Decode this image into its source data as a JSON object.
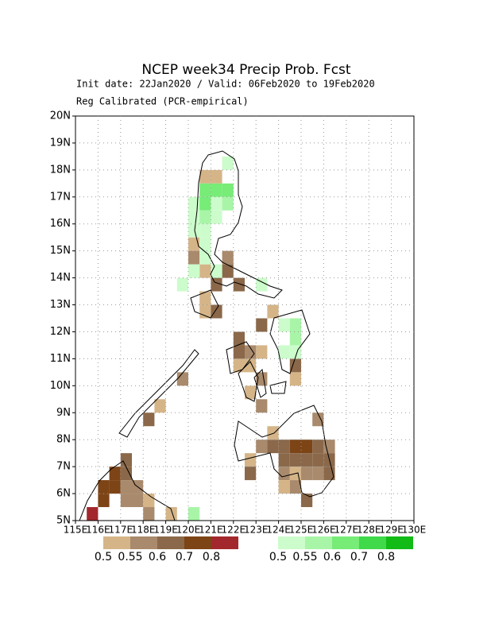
{
  "chart_data": {
    "type": "grid-map",
    "title": "NCEP week34 Precip Prob. Fcst",
    "subtitle": "Init date: 22Jan2020 / Valid: 06Feb2020 to 19Feb2020",
    "method": "Reg Calibrated (PCR-empirical)",
    "xlim": [
      115,
      130
    ],
    "ylim": [
      5,
      20
    ],
    "xticks": [
      {
        "value": 115,
        "label": "115E"
      },
      {
        "value": 116,
        "label": "116E"
      },
      {
        "value": 117,
        "label": "117E"
      },
      {
        "value": 118,
        "label": "118E"
      },
      {
        "value": 119,
        "label": "119E"
      },
      {
        "value": 120,
        "label": "120E"
      },
      {
        "value": 121,
        "label": "121E"
      },
      {
        "value": 122,
        "label": "122E"
      },
      {
        "value": 123,
        "label": "123E"
      },
      {
        "value": 124,
        "label": "124E"
      },
      {
        "value": 125,
        "label": "125E"
      },
      {
        "value": 126,
        "label": "126E"
      },
      {
        "value": 127,
        "label": "127E"
      },
      {
        "value": 128,
        "label": "128E"
      },
      {
        "value": 129,
        "label": "129E"
      },
      {
        "value": 130,
        "label": "130E"
      }
    ],
    "yticks": [
      {
        "value": 5,
        "label": "5N"
      },
      {
        "value": 6,
        "label": "6N"
      },
      {
        "value": 7,
        "label": "7N"
      },
      {
        "value": 8,
        "label": "8N"
      },
      {
        "value": 9,
        "label": "9N"
      },
      {
        "value": 10,
        "label": "10N"
      },
      {
        "value": 11,
        "label": "11N"
      },
      {
        "value": 12,
        "label": "12N"
      },
      {
        "value": 13,
        "label": "13N"
      },
      {
        "value": 14,
        "label": "14N"
      },
      {
        "value": 15,
        "label": "15N"
      },
      {
        "value": 16,
        "label": "16N"
      },
      {
        "value": 17,
        "label": "17N"
      },
      {
        "value": 18,
        "label": "18N"
      },
      {
        "value": 19,
        "label": "19N"
      },
      {
        "value": 20,
        "label": "20N"
      }
    ],
    "grid": true,
    "levels": [
      0.5,
      0.55,
      0.6,
      0.7,
      0.8
    ],
    "dry_colors": [
      "#d5b588",
      "#a98a6c",
      "#8a6849",
      "#7d4416",
      "#a3282d"
    ],
    "wet_colors": [
      "#ccfccc",
      "#a8f5a8",
      "#77ec77",
      "#3fd94a",
      "#12bb16"
    ],
    "dry_cells": [
      [
        120.5,
        17.5,
        0.5
      ],
      [
        121,
        17.5,
        0.5
      ],
      [
        120,
        15,
        0.5
      ],
      [
        120,
        14.5,
        0.55
      ],
      [
        120.5,
        14,
        0.5
      ],
      [
        120.5,
        13,
        0.5
      ],
      [
        121.5,
        14,
        0.6
      ],
      [
        121.5,
        14.5,
        0.55
      ],
      [
        121,
        13.5,
        0.6
      ],
      [
        122,
        13.5,
        0.6
      ],
      [
        120.5,
        12.5,
        0.5
      ],
      [
        121,
        12.5,
        0.6
      ],
      [
        122,
        11.5,
        0.6
      ],
      [
        122,
        11,
        0.6
      ],
      [
        122.5,
        11,
        0.55
      ],
      [
        122,
        10.5,
        0.5
      ],
      [
        122.5,
        10.5,
        0.5
      ],
      [
        123,
        11,
        0.5
      ],
      [
        123,
        12,
        0.6
      ],
      [
        123.5,
        12.5,
        0.5
      ],
      [
        124.5,
        10.5,
        0.6
      ],
      [
        124.5,
        10,
        0.5
      ],
      [
        123,
        10,
        0.55
      ],
      [
        122.5,
        9.5,
        0.5
      ],
      [
        123,
        9,
        0.55
      ],
      [
        118.5,
        9,
        0.5
      ],
      [
        118,
        8.5,
        0.6
      ],
      [
        119.5,
        10,
        0.55
      ],
      [
        123,
        7.5,
        0.55
      ],
      [
        123.5,
        7.5,
        0.6
      ],
      [
        124,
        7.5,
        0.6
      ],
      [
        124.5,
        7.5,
        0.7
      ],
      [
        125,
        7.5,
        0.7
      ],
      [
        125.5,
        7.5,
        0.6
      ],
      [
        126,
        7.5,
        0.55
      ],
      [
        124,
        7,
        0.6
      ],
      [
        124.5,
        7,
        0.6
      ],
      [
        125,
        7,
        0.6
      ],
      [
        125.5,
        7,
        0.6
      ],
      [
        126,
        7,
        0.6
      ],
      [
        124,
        6.5,
        0.55
      ],
      [
        124.5,
        6.5,
        0.5
      ],
      [
        125,
        6.5,
        0.55
      ],
      [
        125.5,
        6.5,
        0.55
      ],
      [
        126,
        6.5,
        0.6
      ],
      [
        124,
        6,
        0.5
      ],
      [
        124.5,
        6,
        0.55
      ],
      [
        125,
        5.5,
        0.6
      ],
      [
        122.5,
        7,
        0.5
      ],
      [
        122.5,
        6.5,
        0.6
      ],
      [
        125.5,
        8.5,
        0.55
      ],
      [
        123.5,
        8,
        0.5
      ],
      [
        116.5,
        6.5,
        0.7
      ],
      [
        116.5,
        6,
        0.7
      ],
      [
        116,
        6,
        0.7
      ],
      [
        116,
        5.5,
        0.7
      ],
      [
        117,
        7,
        0.6
      ],
      [
        117,
        6.5,
        0.6
      ],
      [
        117,
        6,
        0.55
      ],
      [
        117.5,
        6,
        0.55
      ],
      [
        117,
        5.5,
        0.55
      ],
      [
        117.5,
        5.5,
        0.55
      ],
      [
        118,
        5.5,
        0.5
      ],
      [
        115.5,
        5,
        0.8
      ],
      [
        118,
        5,
        0.55
      ],
      [
        119,
        5,
        0.5
      ]
    ],
    "wet_cells": [
      [
        120.5,
        17,
        0.6
      ],
      [
        121,
        17,
        0.6
      ],
      [
        121.5,
        17,
        0.6
      ],
      [
        120,
        16.5,
        0.5
      ],
      [
        120.5,
        16.5,
        0.6
      ],
      [
        121,
        16.5,
        0.5
      ],
      [
        121.5,
        16.5,
        0.55
      ],
      [
        120,
        16,
        0.5
      ],
      [
        120.5,
        16,
        0.55
      ],
      [
        121,
        16,
        0.5
      ],
      [
        120,
        15.5,
        0.5
      ],
      [
        120.5,
        15.5,
        0.5
      ],
      [
        120.5,
        15,
        0.5
      ],
      [
        120.5,
        14.5,
        0.5
      ],
      [
        120,
        14,
        0.5
      ],
      [
        119.5,
        13.5,
        0.5
      ],
      [
        121,
        14,
        0.5
      ],
      [
        123,
        13.5,
        0.5
      ],
      [
        121.5,
        18,
        0.5
      ],
      [
        124,
        12,
        0.5
      ],
      [
        124.5,
        12,
        0.55
      ],
      [
        124,
        11,
        0.5
      ],
      [
        124.5,
        11,
        0.5
      ],
      [
        124.5,
        11.5,
        0.55
      ],
      [
        120,
        5,
        0.55
      ]
    ]
  }
}
